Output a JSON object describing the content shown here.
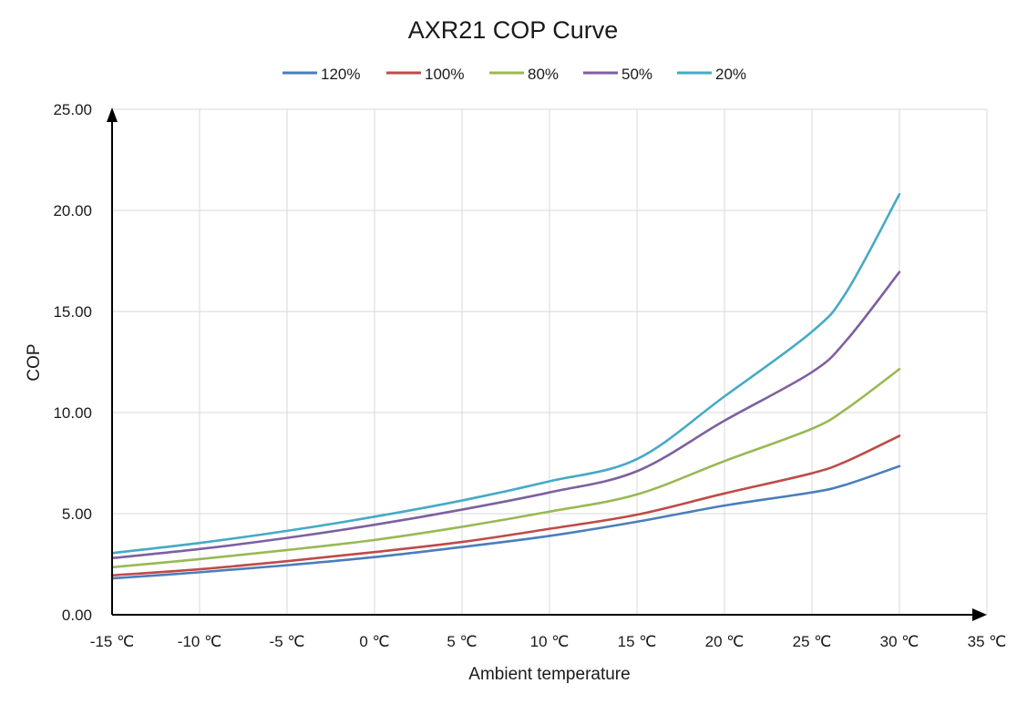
{
  "chart_data": {
    "type": "line",
    "title": "AXR21 COP Curve",
    "xlabel": "Ambient temperature",
    "ylabel": "COP",
    "x_unit": "°C",
    "xlim": [
      -15,
      35
    ],
    "ylim": [
      0,
      25
    ],
    "x_ticks": [
      -15,
      -10,
      -5,
      0,
      5,
      10,
      15,
      20,
      25,
      30,
      35
    ],
    "x_tick_labels": [
      "-15 ℃",
      "-10 ℃",
      "-5 ℃",
      "0 ℃",
      "5 ℃",
      "10 ℃",
      "15 ℃",
      "20 ℃",
      "25 ℃",
      "30 ℃",
      "35 ℃"
    ],
    "y_ticks": [
      0,
      5,
      10,
      15,
      20,
      25
    ],
    "y_tick_labels": [
      "0.00",
      "5.00",
      "10.00",
      "15.00",
      "20.00",
      "25.00"
    ],
    "grid": true,
    "legend_position": "top-center",
    "x": [
      -15,
      -10,
      -5,
      0,
      5,
      10,
      15,
      20,
      25,
      27,
      30
    ],
    "series": [
      {
        "name": "120%",
        "color": "#4a7ebb",
        "values": [
          1.8,
          2.1,
          2.45,
          2.85,
          3.35,
          3.9,
          4.6,
          5.4,
          6.05,
          6.45,
          7.35
        ]
      },
      {
        "name": "100%",
        "color": "#be4b48",
        "values": [
          1.95,
          2.25,
          2.65,
          3.1,
          3.6,
          4.25,
          4.95,
          6.0,
          7.0,
          7.6,
          8.85
        ]
      },
      {
        "name": "80%",
        "color": "#98b954",
        "values": [
          2.35,
          2.75,
          3.2,
          3.7,
          4.35,
          5.1,
          5.95,
          7.6,
          9.2,
          10.2,
          12.15
        ]
      },
      {
        "name": "50%",
        "color": "#7d60a0",
        "values": [
          2.8,
          3.25,
          3.8,
          4.45,
          5.2,
          6.05,
          7.1,
          9.6,
          12.0,
          13.6,
          16.95
        ]
      },
      {
        "name": "20%",
        "color": "#46aac5",
        "values": [
          3.05,
          3.55,
          4.15,
          4.85,
          5.65,
          6.6,
          7.7,
          10.8,
          14.0,
          16.0,
          20.8
        ]
      }
    ]
  }
}
